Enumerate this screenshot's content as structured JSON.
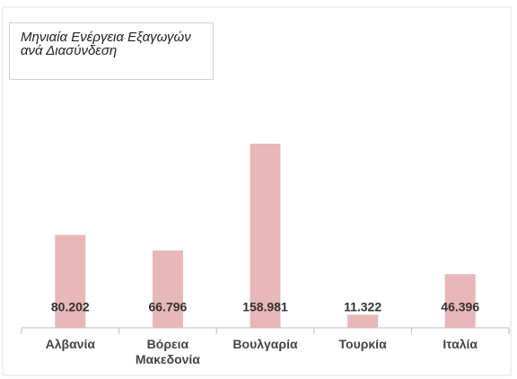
{
  "chart_data": {
    "type": "bar",
    "title": "Μηνιαία Ενέργεια Εξαγωγών ανά Διασύνδεση",
    "categories": [
      "Αλβανία",
      "Βόρεια Μακεδονία",
      "Βουλγαρία",
      "Τουρκία",
      "Ιταλία"
    ],
    "values": [
      80202,
      66796,
      158981,
      11322,
      46396
    ],
    "value_labels": [
      "80.202",
      "66.796",
      "158.981",
      "11.322",
      "46.396"
    ],
    "color": "#e8b7b7"
  }
}
